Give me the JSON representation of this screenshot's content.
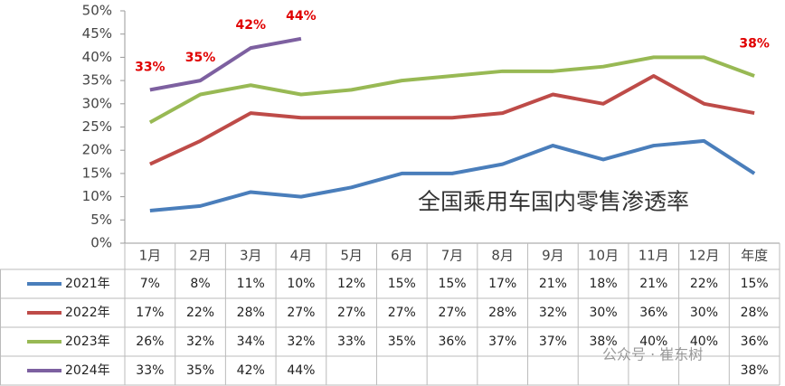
{
  "chart_data": {
    "type": "line",
    "title": "全国乘用车国内零售渗透率",
    "watermark": "公众号 · 崔东树",
    "categories": [
      "1月",
      "2月",
      "3月",
      "4月",
      "5月",
      "6月",
      "7月",
      "8月",
      "9月",
      "10月",
      "11月",
      "12月",
      "年度"
    ],
    "ylim": [
      0,
      50
    ],
    "yticks": [
      {
        "value": 0,
        "label": "0%"
      },
      {
        "value": 5,
        "label": "5%"
      },
      {
        "value": 10,
        "label": "10%"
      },
      {
        "value": 15,
        "label": "15%"
      },
      {
        "value": 20,
        "label": "20%"
      },
      {
        "value": 25,
        "label": "25%"
      },
      {
        "value": 30,
        "label": "30%"
      },
      {
        "value": 35,
        "label": "35%"
      },
      {
        "value": 40,
        "label": "40%"
      },
      {
        "value": 45,
        "label": "45%"
      },
      {
        "value": 50,
        "label": "50%"
      }
    ],
    "grid": false,
    "series": [
      {
        "name": "2021年",
        "color": "#4a7ebb",
        "values": [
          7,
          8,
          11,
          10,
          12,
          15,
          15,
          17,
          21,
          18,
          21,
          22,
          15
        ],
        "value_labels": [
          "7%",
          "8%",
          "11%",
          "10%",
          "12%",
          "15%",
          "15%",
          "17%",
          "21%",
          "18%",
          "21%",
          "22%",
          "15%"
        ]
      },
      {
        "name": "2022年",
        "color": "#be4b48",
        "values": [
          17,
          22,
          28,
          27,
          27,
          27,
          27,
          28,
          32,
          30,
          36,
          30,
          28
        ],
        "value_labels": [
          "17%",
          "22%",
          "28%",
          "27%",
          "27%",
          "27%",
          "27%",
          "28%",
          "32%",
          "30%",
          "36%",
          "30%",
          "28%"
        ]
      },
      {
        "name": "2023年",
        "color": "#98b954",
        "values": [
          26,
          32,
          34,
          32,
          33,
          35,
          36,
          37,
          37,
          38,
          40,
          40,
          36
        ],
        "value_labels": [
          "26%",
          "32%",
          "34%",
          "32%",
          "33%",
          "35%",
          "36%",
          "37%",
          "37%",
          "38%",
          "40%",
          "40%",
          "36%"
        ]
      },
      {
        "name": "2024年",
        "color": "#7d60a0",
        "values": [
          33,
          35,
          42,
          44,
          null,
          null,
          null,
          null,
          null,
          null,
          null,
          null,
          38
        ],
        "value_labels": [
          "33%",
          "35%",
          "42%",
          "44%",
          null,
          null,
          null,
          null,
          null,
          null,
          null,
          null,
          "38%"
        ]
      }
    ]
  }
}
